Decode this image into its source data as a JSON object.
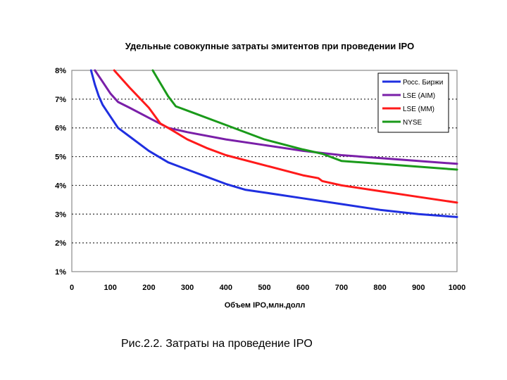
{
  "chart_data": {
    "type": "line",
    "title": "Удельные совокупные затраты эмитентов при проведении IPO",
    "xlabel": "Объем IPO,млн.долл",
    "ylabel": "",
    "xlim": [
      0,
      1000
    ],
    "ylim": [
      1,
      8
    ],
    "x_ticks": [
      0,
      100,
      200,
      300,
      400,
      500,
      600,
      700,
      800,
      900,
      1000
    ],
    "y_ticks": [
      1,
      2,
      3,
      4,
      5,
      6,
      7,
      8
    ],
    "y_tick_labels": [
      "1%",
      "2%",
      "3%",
      "4%",
      "5%",
      "6%",
      "7%",
      "8%"
    ],
    "grid": "horizontal dotted",
    "legend_position": "top-right",
    "series": [
      {
        "name": "Росс. Биржи",
        "color": "#1f2fe0",
        "x": [
          50,
          60,
          70,
          80,
          90,
          100,
          120,
          150,
          200,
          250,
          300,
          350,
          400,
          450,
          500,
          600,
          700,
          800,
          900,
          1000
        ],
        "y": [
          8.0,
          7.5,
          7.1,
          6.8,
          6.6,
          6.4,
          6.0,
          5.7,
          5.2,
          4.8,
          4.55,
          4.3,
          4.05,
          3.85,
          3.75,
          3.55,
          3.35,
          3.15,
          3.0,
          2.9
        ]
      },
      {
        "name": "LSE (AIM)",
        "color": "#7a1fa8",
        "x": [
          60,
          80,
          100,
          120,
          150,
          200,
          250,
          300,
          400,
          500,
          600,
          700,
          800,
          900,
          1000
        ],
        "y": [
          8.0,
          7.6,
          7.2,
          6.9,
          6.7,
          6.35,
          6.0,
          5.85,
          5.6,
          5.4,
          5.2,
          5.05,
          4.95,
          4.85,
          4.75
        ]
      },
      {
        "name": "LSE (MM)",
        "color": "#ff1a1a",
        "x": [
          110,
          130,
          150,
          200,
          230,
          250,
          300,
          350,
          400,
          500,
          600,
          640,
          650,
          700,
          800,
          900,
          1000
        ],
        "y": [
          8.0,
          7.7,
          7.4,
          6.7,
          6.15,
          6.0,
          5.6,
          5.3,
          5.05,
          4.7,
          4.35,
          4.25,
          4.15,
          4.0,
          3.8,
          3.6,
          3.4
        ]
      },
      {
        "name": "NYSE",
        "color": "#1a9a1a",
        "x": [
          210,
          230,
          250,
          270,
          300,
          400,
          500,
          600,
          650,
          700,
          800,
          900,
          1000
        ],
        "y": [
          8.0,
          7.55,
          7.1,
          6.75,
          6.6,
          6.1,
          5.6,
          5.25,
          5.1,
          4.85,
          4.75,
          4.65,
          4.55
        ]
      }
    ]
  },
  "caption": "Рис.2.2. Затраты на проведение IPO"
}
